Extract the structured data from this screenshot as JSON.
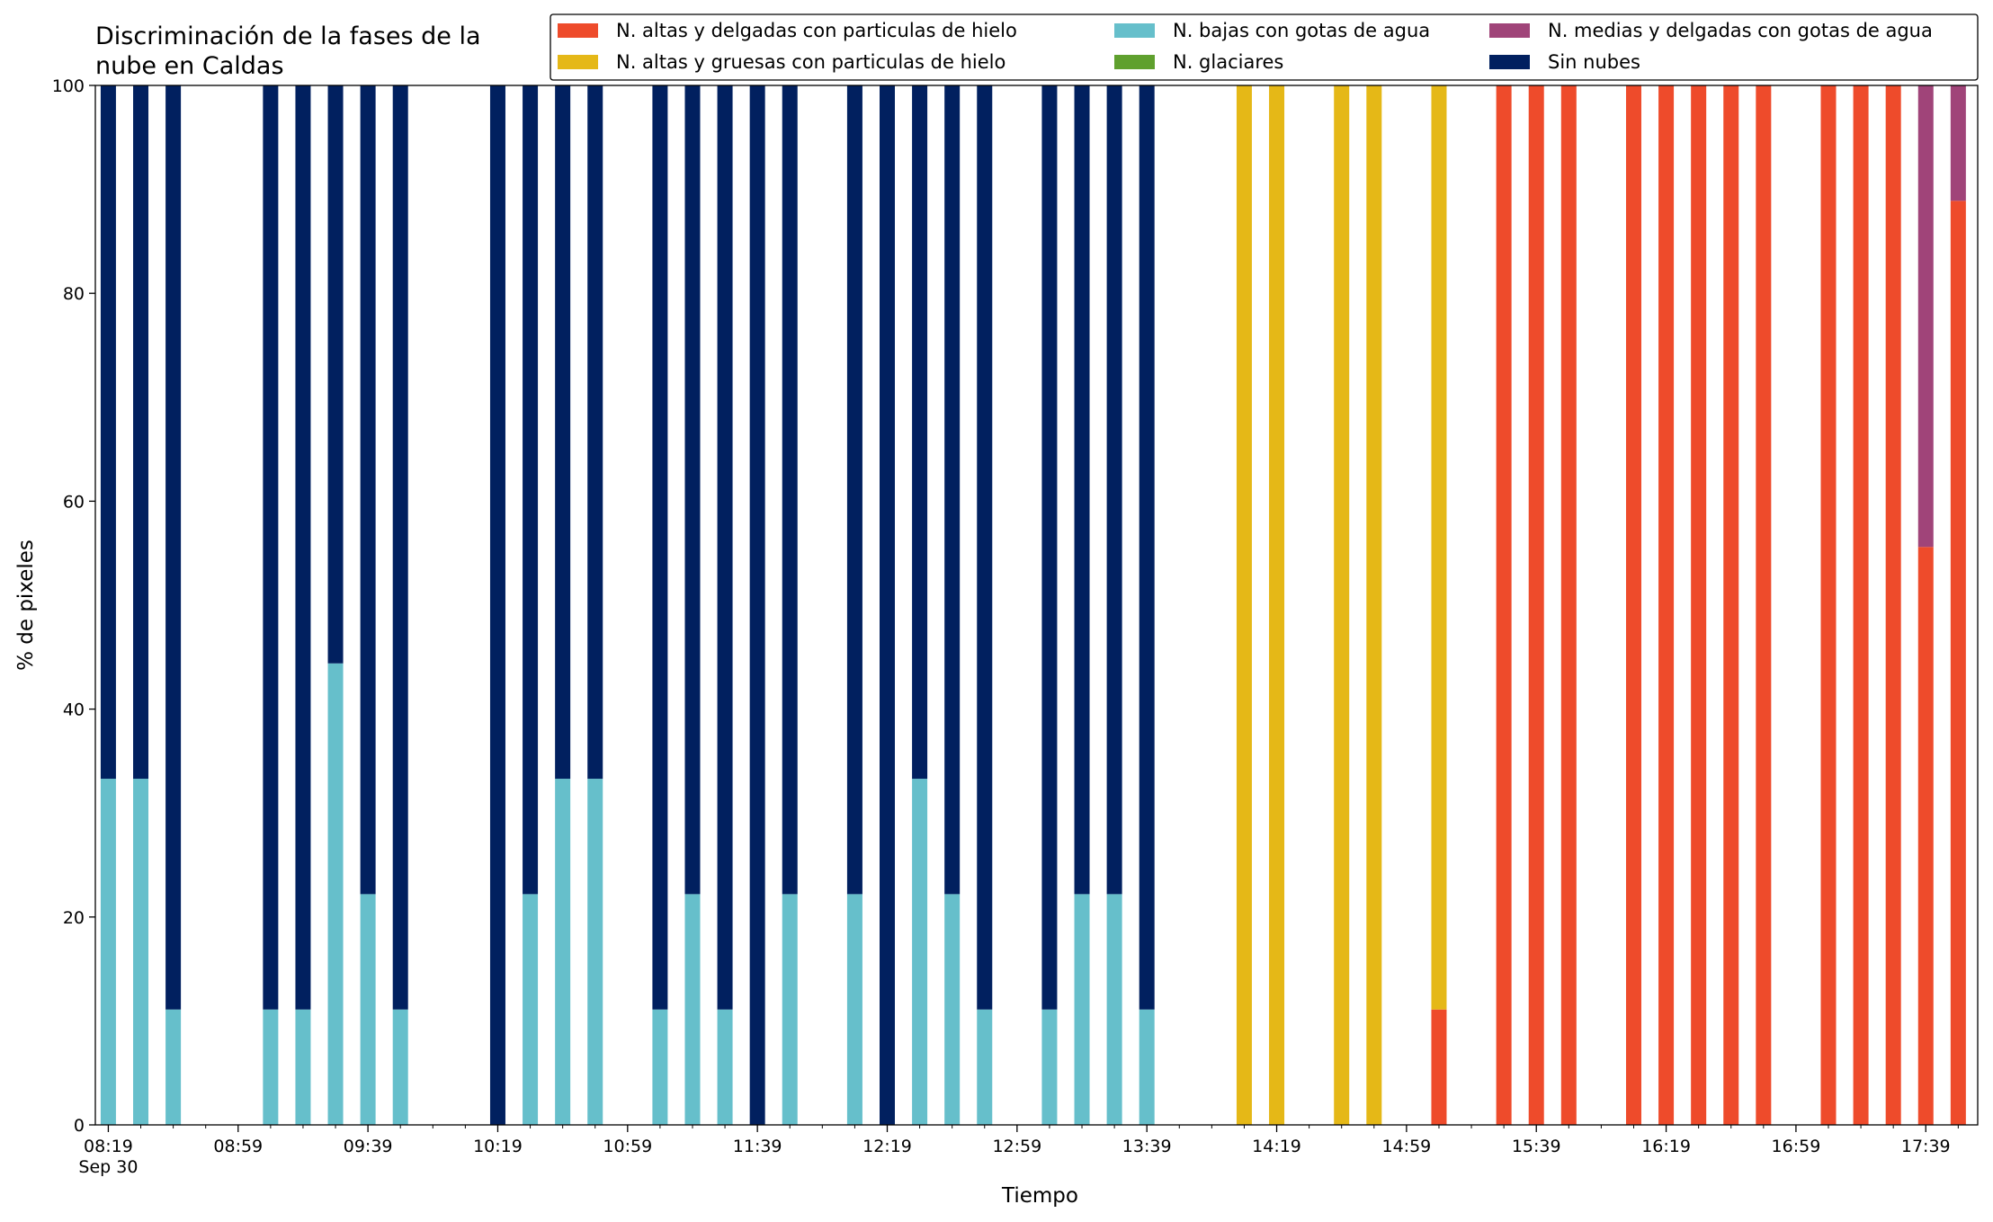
{
  "chart_data": {
    "type": "bar",
    "stacked": true,
    "title": "Discriminación de la fases de la\nnube en Caldas",
    "xlabel": "Tiempo",
    "ylabel": "% de pixeles",
    "ylim": [
      0,
      100
    ],
    "yticks": [
      0,
      20,
      40,
      60,
      80,
      100
    ],
    "x_range_minutes": [
      495,
      1075
    ],
    "xtick_labels": [
      "08:19",
      "08:59",
      "09:39",
      "10:19",
      "10:59",
      "11:39",
      "12:19",
      "12:59",
      "13:39",
      "14:19",
      "14:59",
      "15:39",
      "16:19",
      "16:59",
      "17:39"
    ],
    "xtick_sublabel": "Sep 30",
    "grid": false,
    "legend_position": "top-right",
    "legend_columns": 3,
    "series": [
      {
        "key": "altas_delgadas",
        "name": "N. altas y delgadas con particulas de hielo",
        "color": "#EE4B2B"
      },
      {
        "key": "altas_gruesas",
        "name": "N. altas y gruesas con particulas de hielo",
        "color": "#E5B817"
      },
      {
        "key": "bajas",
        "name": "N. bajas con gotas de agua",
        "color": "#66BFCB"
      },
      {
        "key": "glaciares",
        "name": "N. glaciares",
        "color": "#5FA02E"
      },
      {
        "key": "medias",
        "name": "N. medias y delgadas con gotas de agua",
        "color": "#A04479"
      },
      {
        "key": "sin_nubes",
        "name": "Sin nubes",
        "color": "#01205F"
      }
    ],
    "stack_order": [
      "altas_delgadas",
      "altas_gruesas",
      "bajas",
      "medias",
      "sin_nubes"
    ],
    "bars": [
      {
        "time": "08:19",
        "bajas": 33.3,
        "sin_nubes": 66.7
      },
      {
        "time": "08:29",
        "bajas": 33.3,
        "sin_nubes": 66.7
      },
      {
        "time": "08:39",
        "bajas": 11.1,
        "sin_nubes": 88.9
      },
      {
        "time": "09:09",
        "bajas": 11.1,
        "sin_nubes": 88.9
      },
      {
        "time": "09:19",
        "bajas": 11.1,
        "sin_nubes": 88.9
      },
      {
        "time": "09:29",
        "bajas": 44.4,
        "sin_nubes": 55.6
      },
      {
        "time": "09:39",
        "bajas": 22.2,
        "sin_nubes": 77.8
      },
      {
        "time": "09:49",
        "bajas": 11.1,
        "sin_nubes": 88.9
      },
      {
        "time": "10:19",
        "bajas": 0,
        "sin_nubes": 100
      },
      {
        "time": "10:29",
        "bajas": 22.2,
        "sin_nubes": 77.8
      },
      {
        "time": "10:39",
        "bajas": 33.3,
        "sin_nubes": 66.7
      },
      {
        "time": "10:49",
        "bajas": 33.3,
        "sin_nubes": 66.7
      },
      {
        "time": "11:09",
        "bajas": 11.1,
        "sin_nubes": 88.9
      },
      {
        "time": "11:19",
        "bajas": 22.2,
        "sin_nubes": 77.8
      },
      {
        "time": "11:29",
        "bajas": 11.1,
        "sin_nubes": 88.9
      },
      {
        "time": "11:39",
        "bajas": 0,
        "sin_nubes": 100
      },
      {
        "time": "11:49",
        "bajas": 22.2,
        "sin_nubes": 77.8
      },
      {
        "time": "12:09",
        "bajas": 22.2,
        "sin_nubes": 77.8
      },
      {
        "time": "12:19",
        "bajas": 0,
        "sin_nubes": 100
      },
      {
        "time": "12:29",
        "bajas": 33.3,
        "sin_nubes": 66.7
      },
      {
        "time": "12:39",
        "bajas": 22.2,
        "sin_nubes": 77.8
      },
      {
        "time": "12:49",
        "bajas": 11.1,
        "sin_nubes": 88.9
      },
      {
        "time": "13:09",
        "bajas": 11.1,
        "sin_nubes": 88.9
      },
      {
        "time": "13:19",
        "bajas": 22.2,
        "sin_nubes": 77.8
      },
      {
        "time": "13:29",
        "bajas": 22.2,
        "sin_nubes": 77.8
      },
      {
        "time": "13:39",
        "bajas": 11.1,
        "sin_nubes": 88.9
      },
      {
        "time": "14:09",
        "altas_gruesas": 100
      },
      {
        "time": "14:19",
        "altas_gruesas": 100
      },
      {
        "time": "14:39",
        "altas_gruesas": 100
      },
      {
        "time": "14:49",
        "altas_gruesas": 100
      },
      {
        "time": "15:09",
        "altas_delgadas": 11.1,
        "altas_gruesas": 88.9
      },
      {
        "time": "15:29",
        "altas_delgadas": 100
      },
      {
        "time": "15:39",
        "altas_delgadas": 100
      },
      {
        "time": "15:49",
        "altas_delgadas": 100
      },
      {
        "time": "16:09",
        "altas_delgadas": 100
      },
      {
        "time": "16:19",
        "altas_delgadas": 100
      },
      {
        "time": "16:29",
        "altas_delgadas": 100
      },
      {
        "time": "16:39",
        "altas_delgadas": 100
      },
      {
        "time": "16:49",
        "altas_delgadas": 100
      },
      {
        "time": "17:09",
        "altas_delgadas": 100
      },
      {
        "time": "17:19",
        "altas_delgadas": 100
      },
      {
        "time": "17:29",
        "altas_delgadas": 100
      },
      {
        "time": "17:39",
        "altas_delgadas": 55.6,
        "medias": 44.4
      },
      {
        "time": "17:49",
        "altas_delgadas": 88.9,
        "medias": 11.1
      }
    ]
  }
}
